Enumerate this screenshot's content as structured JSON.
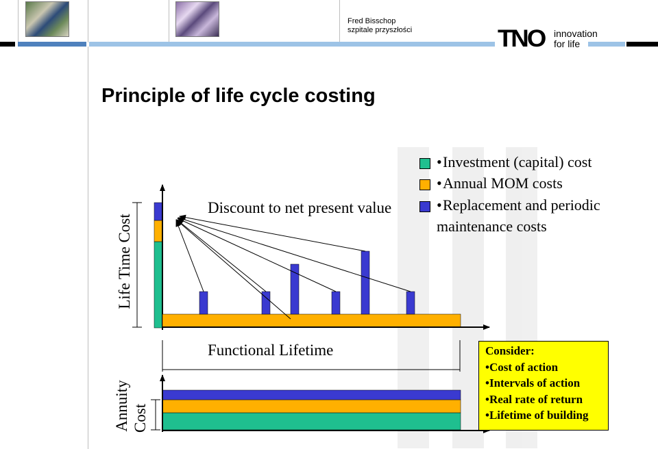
{
  "header": {
    "author_name": "Fred Bisschop",
    "author_subtitle": "szpitale przyszłości",
    "logo_wordmark": "TNO",
    "logo_tagline_1": "innovation",
    "logo_tagline_2": "for life",
    "band_colors": [
      "#000000",
      "#4f81bd",
      "#9dc3e6"
    ]
  },
  "slide": {
    "title": "Principle of life cycle costing"
  },
  "diagram": {
    "y_axis_label_top": "Life Time Cost",
    "y_axis_label_bottom_1": "Annuity",
    "y_axis_label_bottom_2": "Cost",
    "arrow_label": "Discount to net present value",
    "x_label": "Functional Lifetime",
    "colors": {
      "investment": "#1fbf8f",
      "annual_mom": "#ffb000",
      "replacement": "#3a3ad0"
    },
    "legend": [
      {
        "marker": "•",
        "text": "Investment (capital) cost",
        "color_key": "investment"
      },
      {
        "marker": "•",
        "text": "Annual MOM costs",
        "color_key": "annual_mom"
      },
      {
        "marker": "•",
        "text": "Replacement and periodic",
        "color_key": "replacement"
      }
    ],
    "legend_continuation": "maintenance costs",
    "consider": {
      "heading": "Consider:",
      "items": [
        "•Cost of action",
        "•Intervals of action",
        "•Real rate of return",
        "•Lifetime of building"
      ]
    }
  }
}
